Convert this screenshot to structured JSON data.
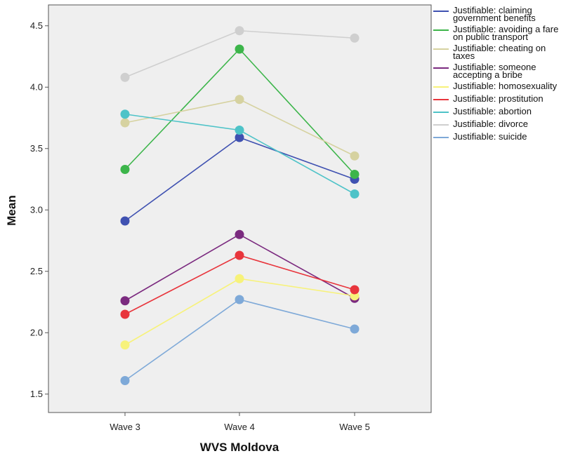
{
  "chart_data": {
    "type": "line",
    "title": "",
    "xlabel": "WVS Moldova",
    "ylabel": "Mean",
    "categories": [
      "Wave 3",
      "Wave 4",
      "Wave 5"
    ],
    "ylim": [
      1.35,
      4.67
    ],
    "yticks": [
      "1.5",
      "2.0",
      "2.5",
      "3.0",
      "3.5",
      "4.0",
      "4.5"
    ],
    "grid": false,
    "legend_position": "right",
    "series": [
      {
        "name": "Justifiable: claiming government benefits",
        "legend_lines": [
          "Justifiable: claiming",
          "government benefits"
        ],
        "color": "#3f51b1",
        "values": [
          2.91,
          3.59,
          3.25
        ]
      },
      {
        "name": "Justifiable: avoiding a fare on public transport",
        "legend_lines": [
          "Justifiable: avoiding a fare",
          "on public transport"
        ],
        "color": "#3cb54a",
        "values": [
          3.33,
          4.31,
          3.29
        ]
      },
      {
        "name": "Justifiable: cheating on taxes",
        "legend_lines": [
          "Justifiable: cheating on",
          "taxes"
        ],
        "color": "#d6d2a0",
        "values": [
          3.71,
          3.9,
          3.44
        ]
      },
      {
        "name": "Justifiable: someone accepting a bribe",
        "legend_lines": [
          "Justifiable: someone",
          "accepting a bribe"
        ],
        "color": "#7b2a7f",
        "values": [
          2.26,
          2.8,
          2.28
        ]
      },
      {
        "name": "Justifiable: homosexuality",
        "legend_lines": [
          "Justifiable: homosexuality"
        ],
        "color": "#f7f27a",
        "values": [
          1.9,
          2.44,
          2.3
        ]
      },
      {
        "name": "Justifiable: prostitution",
        "legend_lines": [
          "Justifiable: prostitution"
        ],
        "color": "#e8353c",
        "values": [
          2.15,
          2.63,
          2.35
        ]
      },
      {
        "name": "Justifiable: abortion",
        "legend_lines": [
          "Justifiable: abortion"
        ],
        "color": "#4ec3c8",
        "values": [
          3.78,
          3.65,
          3.13
        ]
      },
      {
        "name": "Justifiable: divorce",
        "legend_lines": [
          "Justifiable: divorce"
        ],
        "color": "#cfcfcf",
        "values": [
          4.08,
          4.46,
          4.4
        ]
      },
      {
        "name": "Justifiable: suicide",
        "legend_lines": [
          "Justifiable: suicide"
        ],
        "color": "#7ea9d8",
        "values": [
          1.61,
          2.27,
          2.03
        ]
      }
    ]
  }
}
